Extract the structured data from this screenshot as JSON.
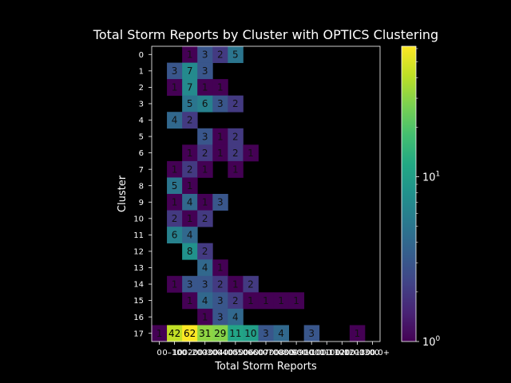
{
  "chart_data": {
    "type": "heatmap",
    "title": "Total Storm Reports by Cluster with OPTICS Clustering",
    "xlabel": "Total Storm Reports",
    "ylabel": "Cluster",
    "x_ticks": [
      "0",
      "0–100",
      "100–200",
      "200–300",
      "300–400",
      "400–500",
      "500–600",
      "600–700",
      "700–800",
      "800–900",
      "900–1000",
      "1000–1100",
      "1100–1200",
      "1200–1300",
      "1300.0+"
    ],
    "y_categories": [
      "0",
      "1",
      "2",
      "3",
      "4",
      "5",
      "6",
      "7",
      "8",
      "9",
      "10",
      "11",
      "12",
      "13",
      "14",
      "15",
      "16",
      "17"
    ],
    "color_scale": "log",
    "colormap": "viridis",
    "vmin": 1,
    "vmax": 62,
    "colorbar_ticks": [
      "10^0",
      "10^1"
    ],
    "cells": [
      {
        "row": "0",
        "col": 2,
        "value": 1
      },
      {
        "row": "0",
        "col": 3,
        "value": 3
      },
      {
        "row": "0",
        "col": 4,
        "value": 2
      },
      {
        "row": "0",
        "col": 5,
        "value": 5
      },
      {
        "row": "1",
        "col": 1,
        "value": 3
      },
      {
        "row": "1",
        "col": 2,
        "value": 7
      },
      {
        "row": "1",
        "col": 3,
        "value": 3
      },
      {
        "row": "2",
        "col": 1,
        "value": 1
      },
      {
        "row": "2",
        "col": 2,
        "value": 7
      },
      {
        "row": "2",
        "col": 3,
        "value": 1
      },
      {
        "row": "2",
        "col": 4,
        "value": 1
      },
      {
        "row": "3",
        "col": 2,
        "value": 5
      },
      {
        "row": "3",
        "col": 3,
        "value": 6
      },
      {
        "row": "3",
        "col": 4,
        "value": 3
      },
      {
        "row": "3",
        "col": 5,
        "value": 2
      },
      {
        "row": "4",
        "col": 1,
        "value": 4
      },
      {
        "row": "4",
        "col": 2,
        "value": 2
      },
      {
        "row": "5",
        "col": 3,
        "value": 3
      },
      {
        "row": "5",
        "col": 4,
        "value": 1
      },
      {
        "row": "5",
        "col": 5,
        "value": 2
      },
      {
        "row": "6",
        "col": 2,
        "value": 1
      },
      {
        "row": "6",
        "col": 3,
        "value": 2
      },
      {
        "row": "6",
        "col": 4,
        "value": 1
      },
      {
        "row": "6",
        "col": 5,
        "value": 2
      },
      {
        "row": "6",
        "col": 6,
        "value": 1
      },
      {
        "row": "7",
        "col": 1,
        "value": 1
      },
      {
        "row": "7",
        "col": 2,
        "value": 2
      },
      {
        "row": "7",
        "col": 3,
        "value": 1
      },
      {
        "row": "7",
        "col": 5,
        "value": 1
      },
      {
        "row": "8",
        "col": 1,
        "value": 5
      },
      {
        "row": "8",
        "col": 2,
        "value": 1
      },
      {
        "row": "9",
        "col": 1,
        "value": 1
      },
      {
        "row": "9",
        "col": 2,
        "value": 4
      },
      {
        "row": "9",
        "col": 3,
        "value": 1
      },
      {
        "row": "9",
        "col": 4,
        "value": 3
      },
      {
        "row": "10",
        "col": 1,
        "value": 2
      },
      {
        "row": "10",
        "col": 2,
        "value": 1
      },
      {
        "row": "10",
        "col": 3,
        "value": 2
      },
      {
        "row": "11",
        "col": 1,
        "value": 6
      },
      {
        "row": "11",
        "col": 2,
        "value": 4
      },
      {
        "row": "12",
        "col": 2,
        "value": 8
      },
      {
        "row": "12",
        "col": 3,
        "value": 2
      },
      {
        "row": "13",
        "col": 3,
        "value": 4
      },
      {
        "row": "13",
        "col": 4,
        "value": 1
      },
      {
        "row": "14",
        "col": 1,
        "value": 1
      },
      {
        "row": "14",
        "col": 2,
        "value": 3
      },
      {
        "row": "14",
        "col": 3,
        "value": 3
      },
      {
        "row": "14",
        "col": 4,
        "value": 2
      },
      {
        "row": "14",
        "col": 5,
        "value": 1
      },
      {
        "row": "14",
        "col": 6,
        "value": 2
      },
      {
        "row": "15",
        "col": 2,
        "value": 1
      },
      {
        "row": "15",
        "col": 3,
        "value": 4
      },
      {
        "row": "15",
        "col": 4,
        "value": 3
      },
      {
        "row": "15",
        "col": 5,
        "value": 2
      },
      {
        "row": "15",
        "col": 6,
        "value": 1
      },
      {
        "row": "15",
        "col": 7,
        "value": 1
      },
      {
        "row": "15",
        "col": 8,
        "value": 1
      },
      {
        "row": "15",
        "col": 9,
        "value": 1
      },
      {
        "row": "16",
        "col": 3,
        "value": 1
      },
      {
        "row": "16",
        "col": 4,
        "value": 3
      },
      {
        "row": "16",
        "col": 5,
        "value": 4
      },
      {
        "row": "17",
        "col": 0,
        "value": 1
      },
      {
        "row": "17",
        "col": 1,
        "value": 42
      },
      {
        "row": "17",
        "col": 2,
        "value": 62
      },
      {
        "row": "17",
        "col": 3,
        "value": 31
      },
      {
        "row": "17",
        "col": 4,
        "value": 29
      },
      {
        "row": "17",
        "col": 5,
        "value": 11
      },
      {
        "row": "17",
        "col": 6,
        "value": 10
      },
      {
        "row": "17",
        "col": 7,
        "value": 3
      },
      {
        "row": "17",
        "col": 8,
        "value": 4
      },
      {
        "row": "17",
        "col": 10,
        "value": 3
      },
      {
        "row": "17",
        "col": 13,
        "value": 1
      }
    ]
  }
}
